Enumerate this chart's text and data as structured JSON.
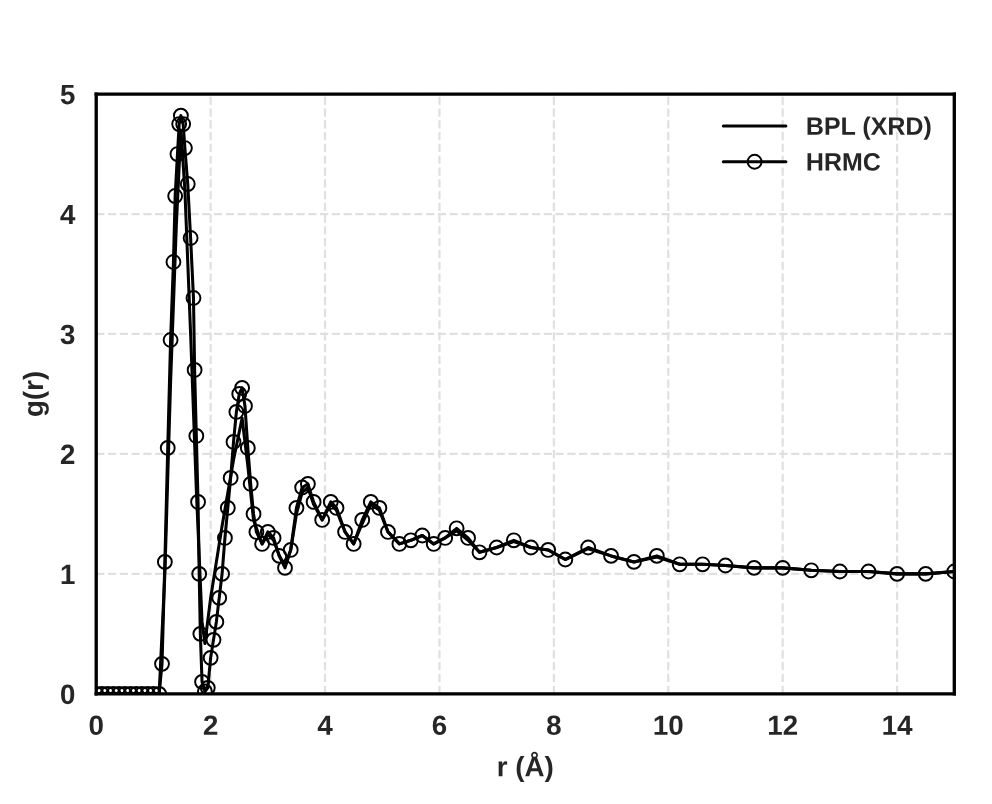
{
  "chart_data": {
    "type": "line",
    "xlabel": "r (Å)",
    "ylabel": "g(r)",
    "xlim": [
      0,
      15
    ],
    "ylim": [
      0,
      5
    ],
    "xticks": [
      0,
      2,
      4,
      6,
      8,
      10,
      12,
      14
    ],
    "yticks": [
      0,
      1,
      2,
      3,
      4,
      5
    ],
    "grid": true,
    "legend": "top right",
    "series": [
      {
        "name": "BPL (XRD)",
        "color": "#000000",
        "x": [
          0,
          1.1,
          1.2,
          1.3,
          1.4,
          1.48,
          1.55,
          1.65,
          1.75,
          1.85,
          1.9,
          2.0,
          2.2,
          2.4,
          2.55,
          2.65,
          2.75,
          2.9,
          3.0,
          3.1,
          3.2,
          3.3,
          3.4,
          3.5,
          3.6,
          3.7,
          3.8,
          3.95,
          4.1,
          4.2,
          4.35,
          4.5,
          4.65,
          4.8,
          4.95,
          5.1,
          5.3,
          5.5,
          5.7,
          5.9,
          6.1,
          6.3,
          6.5,
          6.7,
          7.0,
          7.3,
          7.6,
          7.9,
          8.2,
          8.6,
          9.0,
          9.4,
          9.8,
          10.2,
          10.6,
          11.0,
          11.5,
          12.0,
          12.5,
          13.0,
          13.5,
          14.0,
          14.5,
          15.0
        ],
        "values": [
          0,
          0,
          1.0,
          2.6,
          3.9,
          4.7,
          4.2,
          3.0,
          1.7,
          0.6,
          0.42,
          0.8,
          1.4,
          1.95,
          2.3,
          1.9,
          1.45,
          1.25,
          1.33,
          1.28,
          1.15,
          1.07,
          1.2,
          1.5,
          1.68,
          1.72,
          1.58,
          1.45,
          1.58,
          1.53,
          1.35,
          1.25,
          1.42,
          1.58,
          1.53,
          1.35,
          1.25,
          1.28,
          1.32,
          1.25,
          1.3,
          1.36,
          1.28,
          1.18,
          1.22,
          1.27,
          1.22,
          1.2,
          1.12,
          1.21,
          1.15,
          1.1,
          1.14,
          1.08,
          1.08,
          1.07,
          1.05,
          1.05,
          1.03,
          1.02,
          1.02,
          1.0,
          1.0,
          1.02
        ]
      },
      {
        "name": "HRMC",
        "color": "#000000",
        "marker": "circle",
        "x": [
          0,
          0.1,
          0.2,
          0.3,
          0.4,
          0.5,
          0.6,
          0.7,
          0.8,
          0.9,
          1.0,
          1.1,
          1.15,
          1.2,
          1.25,
          1.3,
          1.35,
          1.38,
          1.42,
          1.45,
          1.48,
          1.52,
          1.55,
          1.6,
          1.65,
          1.7,
          1.72,
          1.75,
          1.78,
          1.8,
          1.82,
          1.85,
          1.9,
          1.95,
          2.0,
          2.05,
          2.1,
          2.15,
          2.2,
          2.25,
          2.3,
          2.35,
          2.4,
          2.45,
          2.5,
          2.55,
          2.6,
          2.65,
          2.7,
          2.75,
          2.8,
          2.9,
          3.0,
          3.1,
          3.2,
          3.3,
          3.4,
          3.5,
          3.6,
          3.7,
          3.8,
          3.95,
          4.1,
          4.2,
          4.35,
          4.5,
          4.65,
          4.8,
          4.95,
          5.1,
          5.3,
          5.5,
          5.7,
          5.9,
          6.1,
          6.3,
          6.5,
          6.7,
          7.0,
          7.3,
          7.6,
          7.9,
          8.2,
          8.6,
          9.0,
          9.4,
          9.8,
          10.2,
          10.6,
          11.0,
          11.5,
          12.0,
          12.5,
          13.0,
          13.5,
          14.0,
          14.5,
          15.0
        ],
        "values": [
          0,
          0,
          0,
          0,
          0,
          0,
          0,
          0,
          0,
          0,
          0,
          0,
          0.25,
          1.1,
          2.05,
          2.95,
          3.6,
          4.15,
          4.5,
          4.75,
          4.82,
          4.75,
          4.55,
          4.25,
          3.8,
          3.3,
          2.7,
          2.15,
          1.6,
          1.0,
          0.5,
          0.1,
          0.02,
          0.05,
          0.3,
          0.45,
          0.6,
          0.8,
          1.0,
          1.3,
          1.55,
          1.8,
          2.1,
          2.35,
          2.5,
          2.55,
          2.4,
          2.05,
          1.75,
          1.5,
          1.35,
          1.25,
          1.35,
          1.3,
          1.15,
          1.05,
          1.2,
          1.55,
          1.72,
          1.75,
          1.6,
          1.45,
          1.6,
          1.55,
          1.35,
          1.25,
          1.45,
          1.6,
          1.55,
          1.35,
          1.25,
          1.28,
          1.32,
          1.25,
          1.3,
          1.38,
          1.3,
          1.18,
          1.22,
          1.28,
          1.22,
          1.2,
          1.12,
          1.22,
          1.15,
          1.1,
          1.15,
          1.08,
          1.08,
          1.07,
          1.05,
          1.05,
          1.03,
          1.02,
          1.02,
          1.0,
          1.0,
          1.02
        ]
      }
    ]
  }
}
